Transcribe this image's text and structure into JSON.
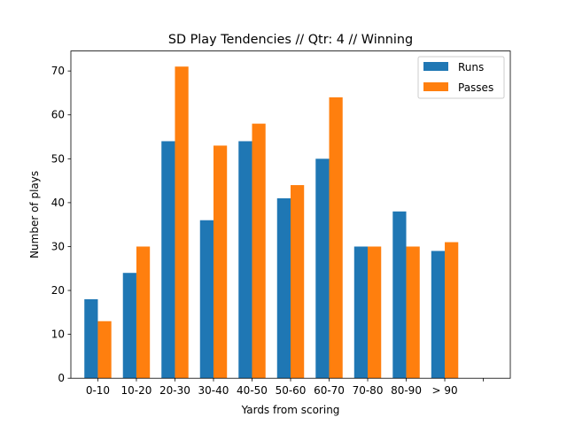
{
  "chart_data": {
    "type": "bar",
    "title": "SD Play Tendencies // Qtr: 4 // Winning",
    "xlabel": "Yards from scoring",
    "ylabel": "Number of plays",
    "categories": [
      "0-10",
      "10-20",
      "20-30",
      "30-40",
      "40-50",
      "50-60",
      "60-70",
      "70-80",
      "80-90",
      "> 90"
    ],
    "series": [
      {
        "name": "Runs",
        "color": "#1f77b4",
        "values": [
          18,
          24,
          54,
          36,
          54,
          41,
          50,
          30,
          38,
          29
        ]
      },
      {
        "name": "Passes",
        "color": "#ff7f0e",
        "values": [
          13,
          30,
          71,
          53,
          58,
          44,
          64,
          30,
          30,
          31
        ]
      }
    ],
    "ylim": [
      0,
      74.55
    ],
    "yticks": [
      0,
      10,
      20,
      30,
      40,
      50,
      60,
      70
    ],
    "legend": "top-right",
    "grid": false
  }
}
